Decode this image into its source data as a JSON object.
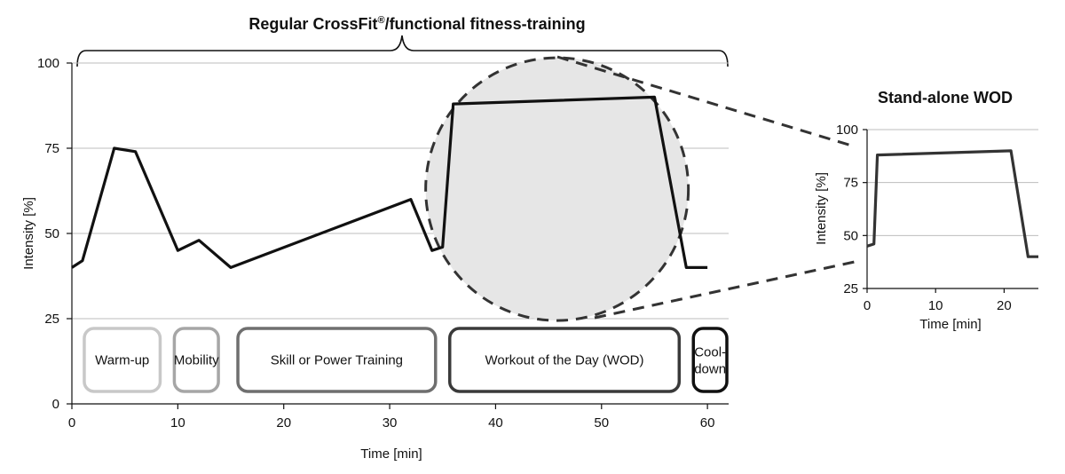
{
  "main_title": "Regular CrossFit®/functional fitness-training",
  "main_title_base": "Regular CrossFit",
  "main_title_sup": "®",
  "main_title_rest": "/functional fitness-training",
  "inset_title": "Stand-alone WOD",
  "colors": {
    "line": "#111111",
    "inset_line": "#333333",
    "circle_fill": "#e6e6e6",
    "grid": "#bdbdbd",
    "warmup": "#c8c8c8",
    "mobility": "#a6a6a6",
    "skill": "#6f6f6f",
    "wod": "#3a3a3a",
    "cooldown": "#111111"
  },
  "chart_data": [
    {
      "type": "line",
      "title": "Regular CrossFit®/functional fitness-training",
      "xlabel": "Time [min]",
      "ylabel": "Intensity [%]",
      "xlim": [
        0,
        62
      ],
      "ylim": [
        0,
        100
      ],
      "x_ticks": [
        0,
        10,
        20,
        30,
        40,
        50,
        60
      ],
      "y_ticks": [
        0,
        25,
        50,
        75,
        100
      ],
      "grid": "horizontal",
      "series": [
        {
          "x": [
            0,
            1,
            4,
            6,
            10,
            12,
            15,
            32,
            34,
            35,
            36,
            55,
            58,
            60
          ],
          "values": [
            40,
            42,
            75,
            74,
            45,
            48,
            40,
            60,
            45,
            46,
            88,
            90,
            40,
            40
          ]
        }
      ],
      "phases": [
        {
          "label": "Warm-up",
          "start": 0.5,
          "end": 8.5
        },
        {
          "label": "Mobility",
          "start": 9,
          "end": 14
        },
        {
          "label": "Skill or Power Training",
          "start": 15,
          "end": 34.5
        },
        {
          "label": "Workout of the Day (WOD)",
          "start": 35,
          "end": 57.5
        },
        {
          "label": "Cool-\ndown",
          "start": 58,
          "end": 62
        }
      ]
    },
    {
      "type": "line",
      "title": "Stand-alone WOD",
      "xlabel": "Time [min]",
      "ylabel": "Intensity [%]",
      "xlim": [
        0,
        25
      ],
      "ylim": [
        25,
        100
      ],
      "x_ticks": [
        0,
        10,
        20
      ],
      "y_ticks": [
        25,
        50,
        75,
        100
      ],
      "grid": "horizontal",
      "series": [
        {
          "x": [
            0,
            1,
            1.5,
            21,
            23.5,
            25
          ],
          "values": [
            45,
            46,
            88,
            90,
            40,
            40
          ]
        }
      ]
    }
  ]
}
